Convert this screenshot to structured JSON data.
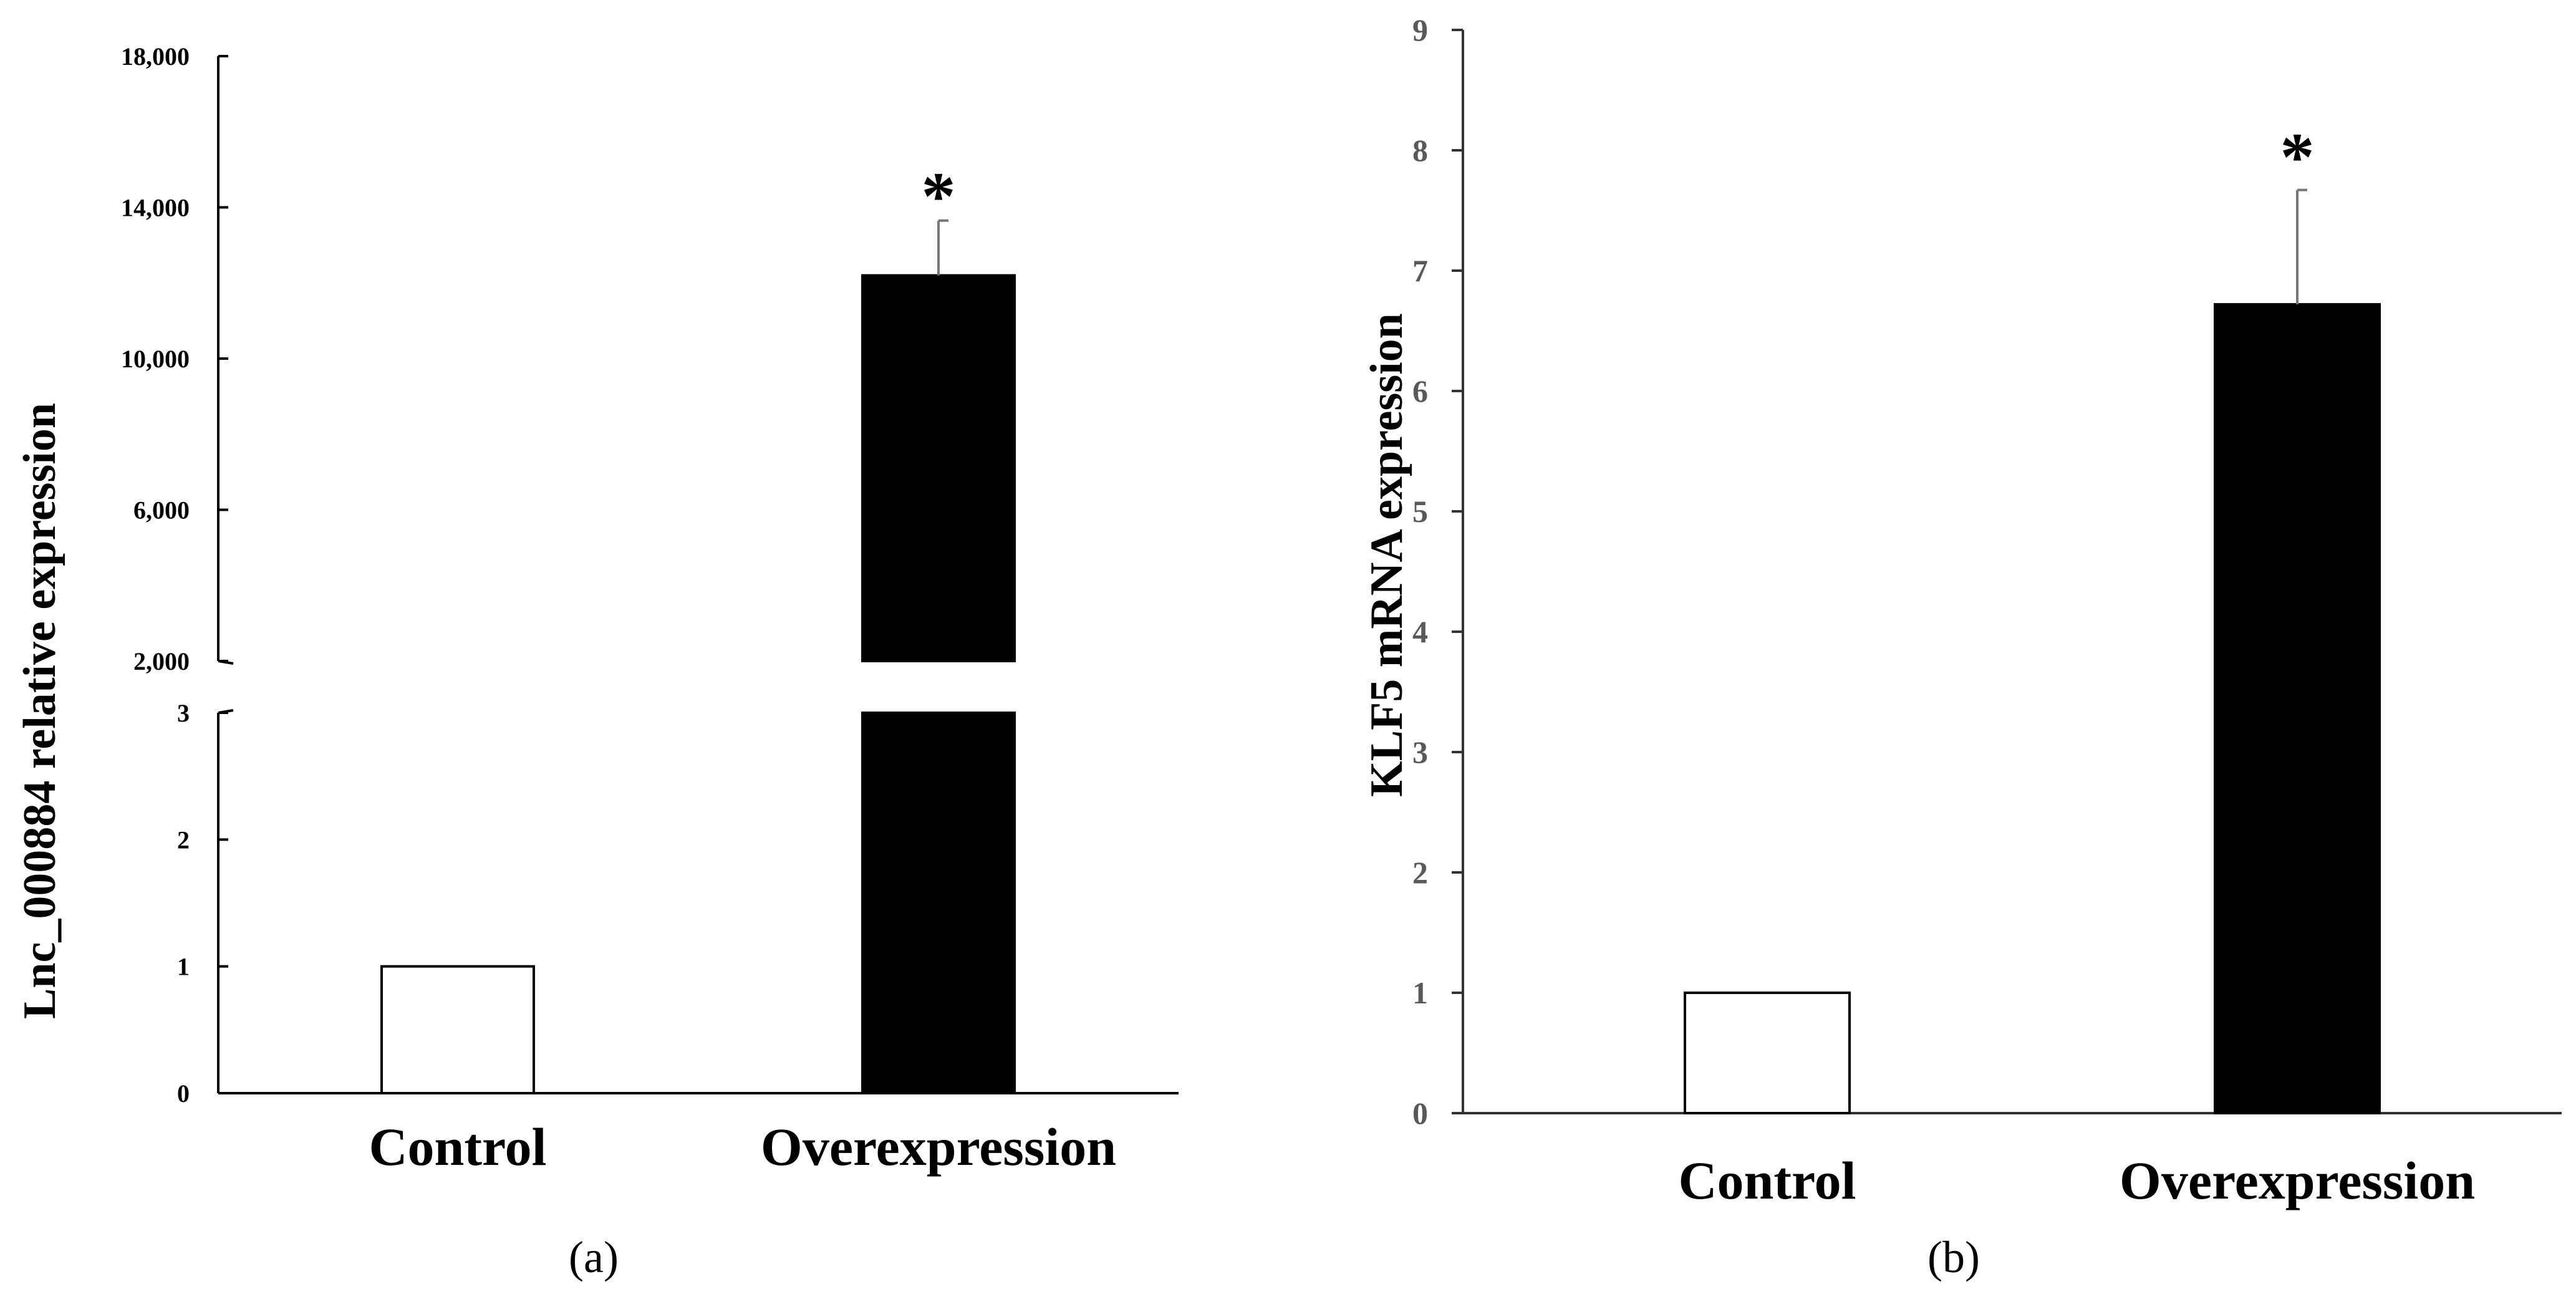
{
  "chart_data": [
    {
      "type": "bar",
      "panel_label": "(a)",
      "ylabel": "Lnc_000884  relative expression",
      "categories": [
        "Control",
        "Overexpression"
      ],
      "values": [
        1,
        12200
      ],
      "error": [
        0,
        1450
      ],
      "significance": [
        "",
        "*"
      ],
      "bar_colors": [
        "#ffffff",
        "#000000"
      ],
      "broken_axis": true,
      "lower_ylim": [
        0,
        3
      ],
      "lower_ticks": [
        "0",
        "1",
        "2",
        "3"
      ],
      "upper_ylim": [
        2000,
        18000
      ],
      "upper_ticks": [
        "2,000",
        "6,000",
        "10,000",
        "14,000",
        "18,000"
      ],
      "grid": false,
      "legend": "none"
    },
    {
      "type": "bar",
      "panel_label": "(b)",
      "ylabel": "KLF5 mRNA  expression",
      "categories": [
        "Control",
        "Overexpression"
      ],
      "values": [
        1,
        6.72
      ],
      "error": [
        0,
        0.95
      ],
      "significance": [
        "",
        "*"
      ],
      "bar_colors": [
        "#ffffff",
        "#000000"
      ],
      "ylim": [
        0,
        9
      ],
      "ticks": [
        "0",
        "1",
        "2",
        "3",
        "4",
        "5",
        "6",
        "7",
        "8",
        "9"
      ],
      "grid": false,
      "legend": "none"
    }
  ]
}
